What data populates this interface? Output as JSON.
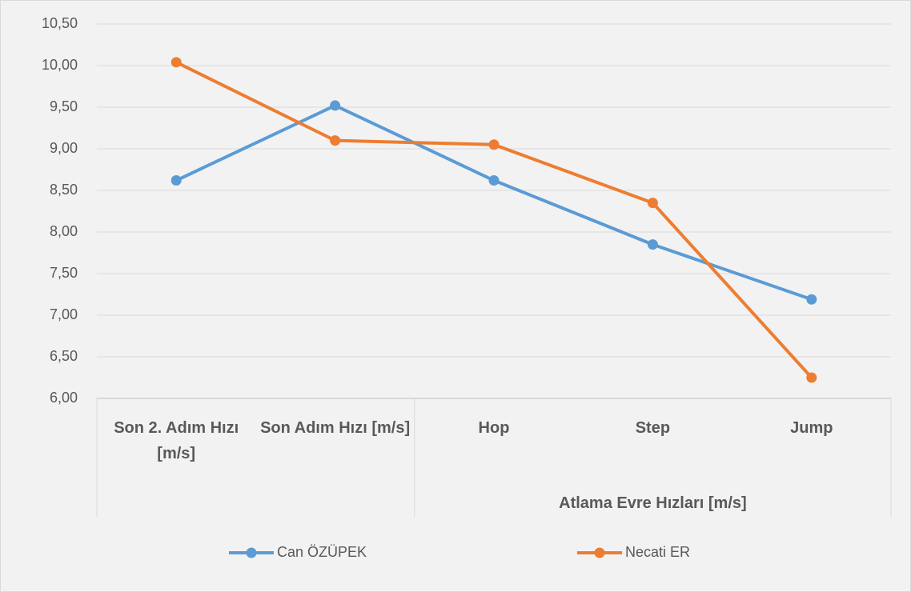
{
  "chart_data": {
    "type": "line",
    "categories": [
      "Son 2. Adım Hızı [m/s]",
      "Son Adım Hızı [m/s]",
      "Hop",
      "Step",
      "Jump"
    ],
    "category_groups": [
      {
        "label": null,
        "span": 2
      },
      {
        "label": "Atlama Evre Hızları [m/s]",
        "span": 3
      }
    ],
    "series": [
      {
        "name": "Can ÖZÜPEK",
        "color": "#5b9bd5",
        "values": [
          8.62,
          9.52,
          8.62,
          7.85,
          7.19
        ]
      },
      {
        "name": "Necati ER",
        "color": "#ed7d31",
        "values": [
          10.04,
          9.1,
          9.05,
          8.35,
          6.25
        ]
      }
    ],
    "ylim": [
      6,
      10.5
    ],
    "yticks": [
      {
        "value": 6,
        "label": "6,00"
      },
      {
        "value": 6.5,
        "label": "6,50"
      },
      {
        "value": 7,
        "label": "7,00"
      },
      {
        "value": 7.5,
        "label": "7,50"
      },
      {
        "value": 8,
        "label": "8,00"
      },
      {
        "value": 8.5,
        "label": "8,50"
      },
      {
        "value": 9,
        "label": "9,00"
      },
      {
        "value": 9.5,
        "label": "9,50"
      },
      {
        "value": 10,
        "label": "10,00"
      },
      {
        "value": 10.5,
        "label": "10,50"
      }
    ],
    "grid": true,
    "legend": "bottom"
  }
}
